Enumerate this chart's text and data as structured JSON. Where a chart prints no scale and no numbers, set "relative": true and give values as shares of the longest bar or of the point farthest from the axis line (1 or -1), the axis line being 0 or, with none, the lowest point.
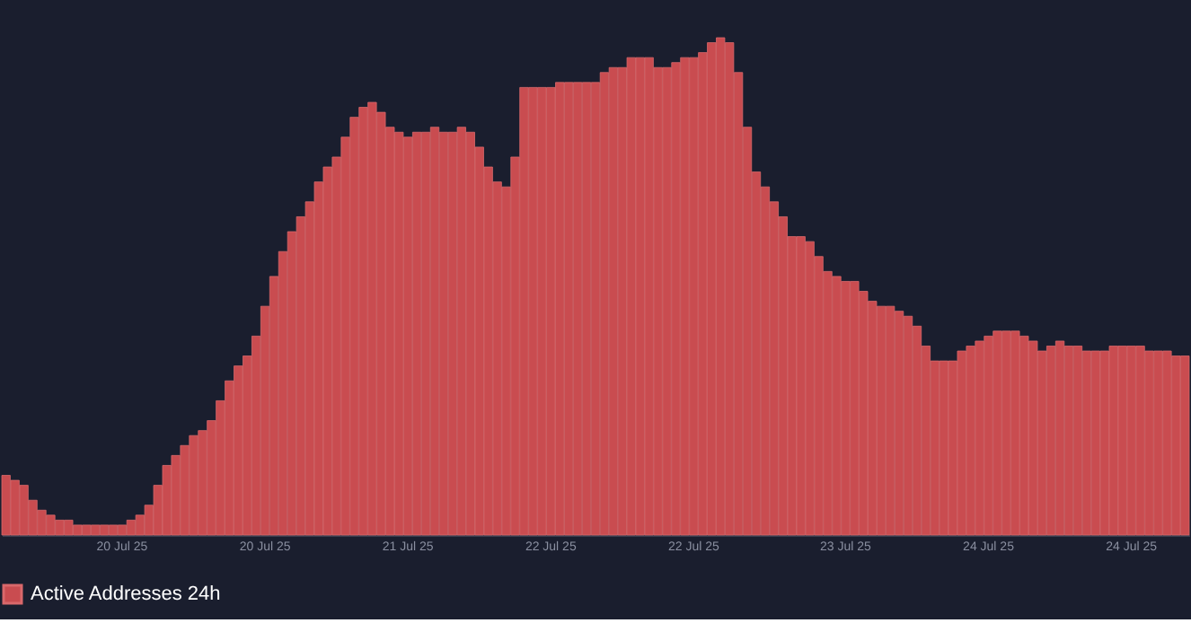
{
  "chart_data": {
    "type": "bar",
    "relative": true,
    "grid": false,
    "legend": "bottom",
    "categories": [
      null,
      null,
      null,
      null,
      null,
      null,
      null,
      null,
      null,
      null,
      null,
      null,
      null,
      "20 Jul 25",
      null,
      null,
      null,
      null,
      null,
      null,
      null,
      null,
      null,
      null,
      null,
      null,
      null,
      null,
      null,
      "20 Jul 25",
      null,
      null,
      null,
      null,
      null,
      null,
      null,
      null,
      null,
      null,
      null,
      null,
      null,
      null,
      null,
      "21 Jul 25",
      null,
      null,
      null,
      null,
      null,
      null,
      null,
      null,
      null,
      null,
      null,
      null,
      null,
      null,
      null,
      "22 Jul 25",
      null,
      null,
      null,
      null,
      null,
      null,
      null,
      null,
      null,
      null,
      null,
      null,
      null,
      null,
      null,
      "22 Jul 25",
      null,
      null,
      null,
      null,
      null,
      null,
      null,
      null,
      null,
      null,
      null,
      null,
      null,
      null,
      null,
      null,
      "23 Jul 25",
      null,
      null,
      null,
      null,
      null,
      null,
      null,
      null,
      null,
      null,
      null,
      null,
      null,
      null,
      null,
      "24 Jul 25",
      null,
      null,
      null,
      null,
      null,
      null,
      null,
      null,
      null,
      null,
      null,
      null,
      null,
      null,
      null,
      "24 Jul 25",
      null,
      null,
      null,
      null,
      null,
      null
    ],
    "series": [
      {
        "name": "Active Addresses 24h",
        "color": "#c94c50",
        "values": [
          0.12,
          0.11,
          0.1,
          0.07,
          0.05,
          0.04,
          0.03,
          0.03,
          0.02,
          0.02,
          0.02,
          0.02,
          0.02,
          0.02,
          0.03,
          0.04,
          0.06,
          0.1,
          0.14,
          0.16,
          0.18,
          0.2,
          0.21,
          0.23,
          0.27,
          0.31,
          0.34,
          0.36,
          0.4,
          0.46,
          0.52,
          0.57,
          0.61,
          0.64,
          0.67,
          0.71,
          0.74,
          0.76,
          0.8,
          0.84,
          0.86,
          0.87,
          0.85,
          0.82,
          0.81,
          0.8,
          0.81,
          0.81,
          0.82,
          0.81,
          0.81,
          0.82,
          0.81,
          0.78,
          0.74,
          0.71,
          0.7,
          0.76,
          0.9,
          0.9,
          0.9,
          0.9,
          0.91,
          0.91,
          0.91,
          0.91,
          0.91,
          0.93,
          0.94,
          0.94,
          0.96,
          0.96,
          0.96,
          0.94,
          0.94,
          0.95,
          0.96,
          0.96,
          0.97,
          0.99,
          1.0,
          0.99,
          0.93,
          0.82,
          0.73,
          0.7,
          0.67,
          0.64,
          0.6,
          0.6,
          0.59,
          0.56,
          0.53,
          0.52,
          0.51,
          0.51,
          0.49,
          0.47,
          0.46,
          0.46,
          0.45,
          0.44,
          0.42,
          0.38,
          0.35,
          0.35,
          0.35,
          0.37,
          0.38,
          0.39,
          0.4,
          0.41,
          0.41,
          0.41,
          0.4,
          0.39,
          0.37,
          0.38,
          0.39,
          0.38,
          0.38,
          0.37,
          0.37,
          0.37,
          0.38,
          0.38,
          0.38,
          0.38,
          0.37,
          0.37,
          0.37,
          0.36,
          0.36
        ]
      }
    ]
  }
}
